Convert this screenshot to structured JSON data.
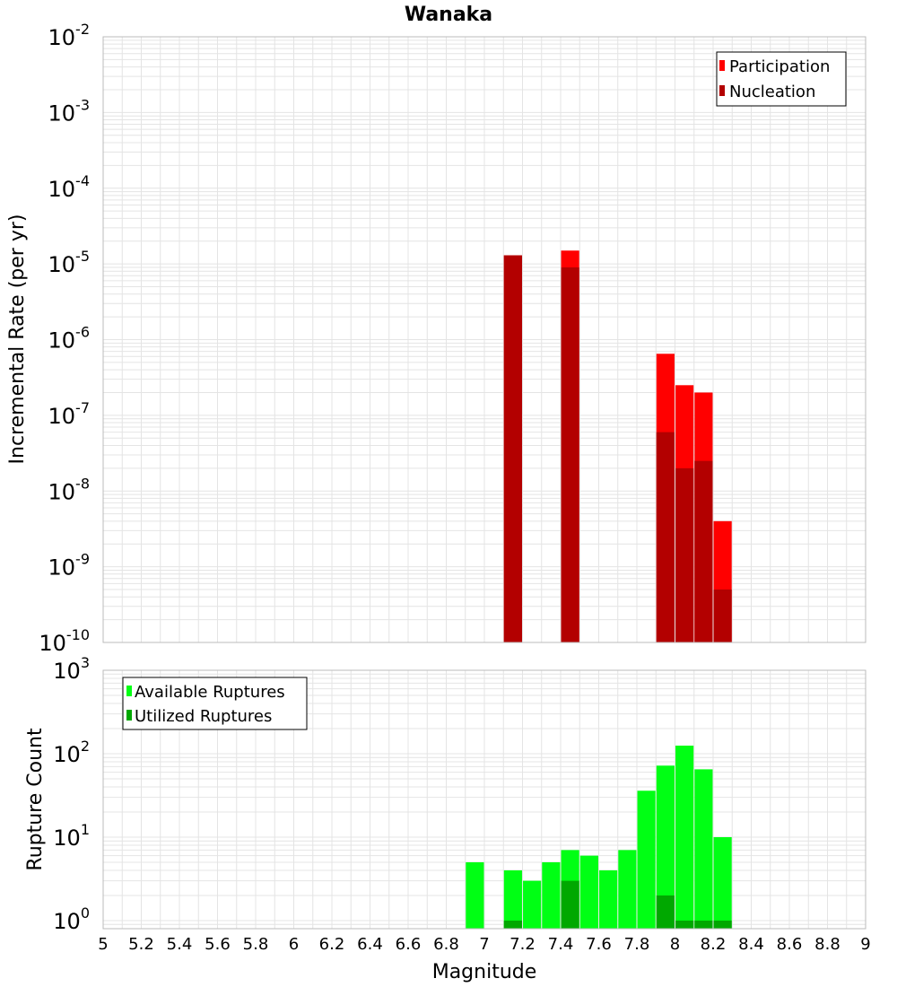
{
  "colors": {
    "participation": "#ff0000",
    "nucleation": "#b30000",
    "available": "#00ff14",
    "utilized": "#00a800",
    "grid": "#e4e4e4",
    "frame": "#bbbbbb"
  },
  "chart_data": [
    {
      "type": "bar",
      "title": "Wanaka",
      "xlabel": "",
      "ylabel": "Incremental Rate (per yr)",
      "yscale": "log",
      "xlim": [
        5,
        9
      ],
      "ylim": [
        1e-10,
        0.01
      ],
      "y_tick_labels": [
        {
          "base": "10",
          "exp": "-10"
        },
        {
          "base": "10",
          "exp": "-9"
        },
        {
          "base": "10",
          "exp": "-8"
        },
        {
          "base": "10",
          "exp": "-7"
        },
        {
          "base": "10",
          "exp": "-6"
        },
        {
          "base": "10",
          "exp": "-5"
        },
        {
          "base": "10",
          "exp": "-4"
        },
        {
          "base": "10",
          "exp": "-3"
        },
        {
          "base": "10",
          "exp": "-2"
        }
      ],
      "legend": {
        "position": "top-right",
        "entries": [
          "Participation",
          "Nucleation"
        ]
      },
      "series": [
        {
          "name": "Participation",
          "x": [
            7.15,
            7.45,
            7.95,
            8.05,
            8.15,
            8.25
          ],
          "values": [
            1.3e-05,
            1.5e-05,
            6.5e-07,
            2.5e-07,
            2e-07,
            4e-09
          ]
        },
        {
          "name": "Nucleation",
          "x": [
            7.15,
            7.45,
            7.95,
            8.05,
            8.15,
            8.25
          ],
          "values": [
            1.3e-05,
            9e-06,
            6e-08,
            2e-08,
            2.5e-08,
            5e-10
          ]
        }
      ]
    },
    {
      "type": "bar",
      "xlabel": "Magnitude",
      "ylabel": "Rupture Count",
      "yscale": "log",
      "xlim": [
        5,
        9
      ],
      "ylim": [
        0.8,
        1000
      ],
      "x_ticks": [
        "5",
        "5.2",
        "5.4",
        "5.6",
        "5.8",
        "6",
        "6.2",
        "6.4",
        "6.6",
        "6.8",
        "7",
        "7.2",
        "7.4",
        "7.6",
        "7.8",
        "8",
        "8.2",
        "8.4",
        "8.6",
        "8.8",
        "9"
      ],
      "y_tick_labels": [
        {
          "base": "10",
          "exp": "0"
        },
        {
          "base": "10",
          "exp": "1"
        },
        {
          "base": "10",
          "exp": "2"
        },
        {
          "base": "10",
          "exp": "3"
        }
      ],
      "legend": {
        "position": "top-left",
        "entries": [
          "Available Ruptures",
          "Utilized Ruptures"
        ]
      },
      "series": [
        {
          "name": "Available Ruptures",
          "x": [
            6.95,
            7.15,
            7.25,
            7.35,
            7.45,
            7.55,
            7.65,
            7.75,
            7.85,
            7.95,
            8.05,
            8.15,
            8.25
          ],
          "values": [
            5,
            4,
            3,
            5,
            7,
            6,
            4,
            7,
            36,
            72,
            125,
            65,
            10
          ]
        },
        {
          "name": "Utilized Ruptures",
          "x": [
            7.15,
            7.45,
            7.95,
            8.05,
            8.15,
            8.25
          ],
          "values": [
            1,
            3,
            2,
            1,
            1,
            1
          ]
        }
      ]
    }
  ]
}
